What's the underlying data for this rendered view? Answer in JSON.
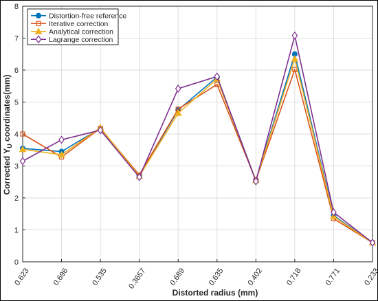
{
  "chart_data": {
    "type": "line",
    "categories": [
      "0.623",
      "0.696",
      "0.535",
      "0.3657",
      "0.689",
      "0.635",
      "0.402",
      "0.718",
      "0.771",
      "0.233"
    ],
    "xlabel": "Distorted radius (mm)",
    "ylabel_prefix": "Corrected Y",
    "ylabel_sub": "U",
    "ylabel_suffix": " coordinates(mm)",
    "ylim": [
      0,
      8
    ],
    "yticks": [
      "0",
      "1",
      "2",
      "3",
      "4",
      "5",
      "6",
      "7",
      "8"
    ],
    "grid": true,
    "legend_position": "top-left",
    "series": [
      {
        "name": "Distortion-free reference",
        "color": "#0072BD",
        "marker": "circle",
        "values": [
          3.55,
          3.45,
          4.18,
          2.7,
          4.75,
          5.78,
          2.55,
          6.5,
          1.45,
          0.6
        ]
      },
      {
        "name": "Iterative correction",
        "color": "#D95319",
        "marker": "square",
        "values": [
          4.0,
          3.28,
          4.18,
          2.72,
          4.78,
          5.55,
          2.55,
          6.02,
          1.35,
          0.6
        ]
      },
      {
        "name": "Analytical correction",
        "color": "#EDB120",
        "marker": "triangle",
        "values": [
          3.52,
          3.35,
          4.2,
          2.68,
          4.65,
          5.72,
          2.55,
          6.35,
          1.42,
          0.6
        ]
      },
      {
        "name": "Lagrange correction",
        "color": "#7E2F8E",
        "marker": "diamond",
        "values": [
          3.15,
          3.82,
          4.12,
          2.65,
          5.42,
          5.8,
          2.52,
          7.08,
          1.55,
          0.6
        ]
      }
    ]
  }
}
